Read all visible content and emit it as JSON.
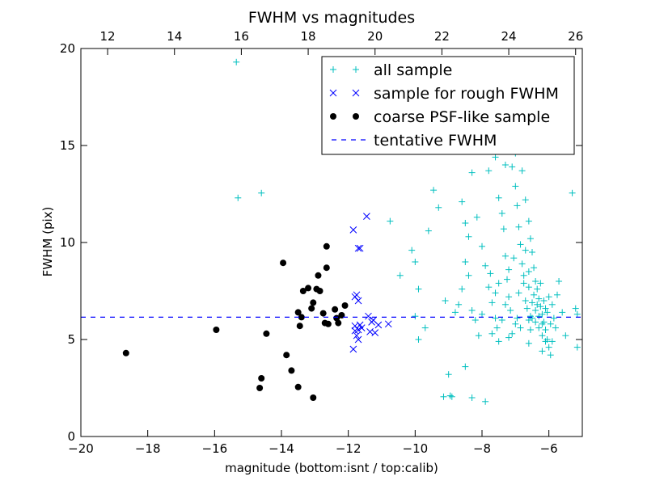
{
  "chart_data": {
    "type": "scatter",
    "title": "FWHM vs magnitudes",
    "xlabel": "magnitude (bottom:isnt / top:calib)",
    "ylabel": "FWHM (pix)",
    "xlim": [
      -20,
      -5
    ],
    "ylim": [
      0,
      20
    ],
    "top_xlim": [
      11.2,
      26.2
    ],
    "x_ticks": [
      -20,
      -18,
      -16,
      -14,
      -12,
      -10,
      -8,
      -6
    ],
    "x_tick_labels": [
      "−20",
      "−18",
      "−16",
      "−14",
      "−12",
      "−10",
      "−8",
      "−6"
    ],
    "top_x_ticks": [
      12,
      14,
      16,
      18,
      20,
      22,
      24,
      26
    ],
    "top_x_tick_labels": [
      "12",
      "14",
      "16",
      "18",
      "20",
      "22",
      "24",
      "26"
    ],
    "y_ticks": [
      0,
      5,
      10,
      15,
      20
    ],
    "y_tick_labels": [
      "0",
      "5",
      "10",
      "15",
      "20"
    ],
    "grid": false,
    "legend_position": "top-right",
    "series": [
      {
        "name": "all sample",
        "marker": "plus",
        "color": "#00bfbf",
        "points": [
          [
            -15.35,
            19.3
          ],
          [
            -15.3,
            12.3
          ],
          [
            -14.6,
            12.55
          ],
          [
            -10.75,
            11.1
          ],
          [
            -10.45,
            8.3
          ],
          [
            -10.1,
            9.6
          ],
          [
            -10.0,
            9.0
          ],
          [
            -9.9,
            7.6
          ],
          [
            -10.0,
            6.2
          ],
          [
            -9.9,
            5.0
          ],
          [
            -9.6,
            10.6
          ],
          [
            -9.45,
            12.7
          ],
          [
            -9.3,
            11.8
          ],
          [
            -9.15,
            2.05
          ],
          [
            -9.0,
            3.2
          ],
          [
            -8.95,
            2.1
          ],
          [
            -8.9,
            2.05
          ],
          [
            -9.1,
            7.0
          ],
          [
            -8.7,
            6.8
          ],
          [
            -8.6,
            7.6
          ],
          [
            -8.5,
            9.0
          ],
          [
            -8.4,
            8.3
          ],
          [
            -8.3,
            6.5
          ],
          [
            -8.2,
            6.0
          ],
          [
            -8.1,
            5.2
          ],
          [
            -8.6,
            12.1
          ],
          [
            -8.5,
            11.0
          ],
          [
            -8.4,
            10.3
          ],
          [
            -8.3,
            13.6
          ],
          [
            -8.15,
            11.3
          ],
          [
            -8.0,
            9.8
          ],
          [
            -7.9,
            8.8
          ],
          [
            -7.8,
            7.7
          ],
          [
            -7.75,
            8.4
          ],
          [
            -7.7,
            6.9
          ],
          [
            -7.6,
            6.1
          ],
          [
            -7.55,
            5.6
          ],
          [
            -7.5,
            4.9
          ],
          [
            -7.8,
            13.7
          ],
          [
            -7.6,
            14.4
          ],
          [
            -7.5,
            12.3
          ],
          [
            -7.4,
            11.5
          ],
          [
            -7.35,
            10.7
          ],
          [
            -7.3,
            9.3
          ],
          [
            -7.25,
            8.1
          ],
          [
            -7.2,
            7.2
          ],
          [
            -7.15,
            6.5
          ],
          [
            -7.1,
            5.3
          ],
          [
            -7.3,
            14.0
          ],
          [
            -7.1,
            13.9
          ],
          [
            -7.0,
            12.9
          ],
          [
            -6.95,
            11.9
          ],
          [
            -6.9,
            10.8
          ],
          [
            -6.85,
            9.9
          ],
          [
            -6.8,
            8.9
          ],
          [
            -6.75,
            7.9
          ],
          [
            -6.7,
            7.0
          ],
          [
            -6.65,
            6.6
          ],
          [
            -6.6,
            6.0
          ],
          [
            -6.55,
            5.5
          ],
          [
            -7.0,
            14.6
          ],
          [
            -6.8,
            13.7
          ],
          [
            -6.7,
            12.2
          ],
          [
            -6.6,
            11.1
          ],
          [
            -6.55,
            10.2
          ],
          [
            -6.5,
            9.5
          ],
          [
            -6.45,
            8.7
          ],
          [
            -6.4,
            8.0
          ],
          [
            -6.35,
            7.6
          ],
          [
            -6.3,
            7.1
          ],
          [
            -6.25,
            6.7
          ],
          [
            -6.2,
            6.3
          ],
          [
            -6.15,
            5.9
          ],
          [
            -6.1,
            5.5
          ],
          [
            -6.05,
            5.0
          ],
          [
            -6.0,
            4.6
          ],
          [
            -5.95,
            4.2
          ],
          [
            -6.5,
            6.9
          ],
          [
            -6.4,
            6.5
          ],
          [
            -6.3,
            6.2
          ],
          [
            -6.2,
            5.8
          ],
          [
            -6.1,
            6.6
          ],
          [
            -6.0,
            7.2
          ],
          [
            -5.9,
            6.8
          ],
          [
            -5.85,
            6.1
          ],
          [
            -5.8,
            5.6
          ],
          [
            -5.75,
            7.3
          ],
          [
            -5.7,
            8.0
          ],
          [
            -5.6,
            6.4
          ],
          [
            -5.5,
            5.2
          ],
          [
            -5.3,
            12.55
          ],
          [
            -5.2,
            6.6
          ],
          [
            -5.15,
            6.3
          ],
          [
            -5.15,
            4.6
          ],
          [
            -9.7,
            5.6
          ],
          [
            -8.8,
            6.4
          ],
          [
            -8.0,
            6.3
          ],
          [
            -7.4,
            6.0
          ],
          [
            -7.0,
            5.8
          ],
          [
            -6.6,
            4.8
          ],
          [
            -6.2,
            4.4
          ],
          [
            -5.9,
            4.9
          ],
          [
            -8.3,
            2.0
          ],
          [
            -7.9,
            1.8
          ],
          [
            -8.5,
            3.6
          ],
          [
            -7.7,
            5.3
          ],
          [
            -7.2,
            5.1
          ],
          [
            -6.9,
            7.4
          ],
          [
            -6.75,
            8.3
          ],
          [
            -6.6,
            7.7
          ],
          [
            -6.45,
            7.3
          ],
          [
            -6.35,
            6.8
          ],
          [
            -6.25,
            7.9
          ],
          [
            -6.15,
            7.0
          ],
          [
            -6.05,
            6.4
          ],
          [
            -5.95,
            5.8
          ],
          [
            -6.55,
            6.2
          ],
          [
            -6.4,
            5.9
          ],
          [
            -6.3,
            5.6
          ],
          [
            -6.2,
            5.2
          ],
          [
            -6.1,
            4.9
          ],
          [
            -7.6,
            7.4
          ],
          [
            -7.5,
            7.9
          ],
          [
            -7.3,
            6.8
          ],
          [
            -7.2,
            8.6
          ],
          [
            -7.05,
            9.2
          ],
          [
            -6.95,
            6.1
          ],
          [
            -6.85,
            5.6
          ],
          [
            -6.7,
            9.6
          ],
          [
            -6.6,
            8.5
          ],
          [
            -6.5,
            6.1
          ]
        ]
      },
      {
        "name": "sample for rough FWHM",
        "marker": "x",
        "color": "#0000ff",
        "points": [
          [
            -11.85,
            10.65
          ],
          [
            -11.45,
            11.35
          ],
          [
            -11.7,
            9.7
          ],
          [
            -11.65,
            9.7
          ],
          [
            -11.8,
            7.2
          ],
          [
            -11.7,
            7.0
          ],
          [
            -11.75,
            7.3
          ],
          [
            -11.8,
            5.7
          ],
          [
            -11.7,
            5.5
          ],
          [
            -11.75,
            5.2
          ],
          [
            -11.7,
            5.0
          ],
          [
            -11.6,
            5.6
          ],
          [
            -11.85,
            4.5
          ],
          [
            -11.4,
            6.2
          ],
          [
            -11.3,
            5.9
          ],
          [
            -11.2,
            5.35
          ],
          [
            -11.1,
            5.75
          ],
          [
            -10.8,
            5.8
          ],
          [
            -11.35,
            5.4
          ],
          [
            -11.25,
            6.0
          ],
          [
            -11.8,
            5.45
          ],
          [
            -11.65,
            5.75
          ]
        ]
      },
      {
        "name": "coarse PSF-like sample",
        "marker": "circle",
        "color": "#000000",
        "points": [
          [
            -18.65,
            4.3
          ],
          [
            -15.95,
            5.5
          ],
          [
            -14.45,
            5.3
          ],
          [
            -14.6,
            3.0
          ],
          [
            -14.65,
            2.5
          ],
          [
            -13.95,
            8.95
          ],
          [
            -13.85,
            4.2
          ],
          [
            -13.7,
            3.4
          ],
          [
            -13.5,
            2.55
          ],
          [
            -13.45,
            5.7
          ],
          [
            -13.5,
            6.4
          ],
          [
            -13.4,
            6.15
          ],
          [
            -13.35,
            7.5
          ],
          [
            -13.2,
            7.65
          ],
          [
            -13.1,
            6.6
          ],
          [
            -13.05,
            6.9
          ],
          [
            -13.05,
            2.0
          ],
          [
            -12.95,
            7.6
          ],
          [
            -12.9,
            8.3
          ],
          [
            -12.85,
            7.5
          ],
          [
            -12.75,
            6.35
          ],
          [
            -12.7,
            5.85
          ],
          [
            -12.65,
            8.7
          ],
          [
            -12.65,
            9.8
          ],
          [
            -12.6,
            5.8
          ],
          [
            -12.4,
            6.55
          ],
          [
            -12.35,
            6.1
          ],
          [
            -12.3,
            5.85
          ],
          [
            -12.2,
            6.25
          ],
          [
            -12.1,
            6.75
          ]
        ]
      },
      {
        "name": "tentative FWHM",
        "marker": "dashed-line",
        "color": "#0000ff",
        "y": 6.15
      }
    ]
  }
}
